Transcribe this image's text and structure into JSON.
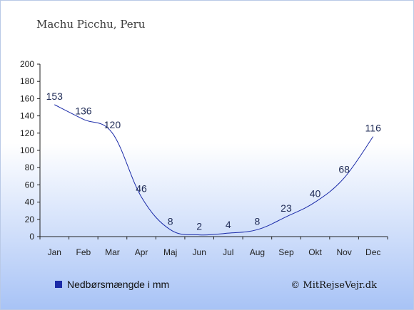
{
  "chart_data": {
    "type": "line",
    "title": "Machu Picchu, Peru",
    "categories": [
      "Jan",
      "Feb",
      "Mar",
      "Apr",
      "Maj",
      "Jun",
      "Jul",
      "Aug",
      "Sep",
      "Okt",
      "Nov",
      "Dec"
    ],
    "series": [
      {
        "name": "Nedbørsmængde i mm",
        "values": [
          153,
          136,
          120,
          46,
          8,
          2,
          4,
          8,
          23,
          40,
          68,
          116
        ],
        "color": "#1a2aa8"
      }
    ],
    "ylim": [
      0,
      200
    ],
    "yticks": [
      0,
      20,
      40,
      60,
      80,
      100,
      120,
      140,
      160,
      180,
      200
    ],
    "legend_position": "bottom-left",
    "grid": false
  },
  "credit": "© MitRejseVejr.dk"
}
